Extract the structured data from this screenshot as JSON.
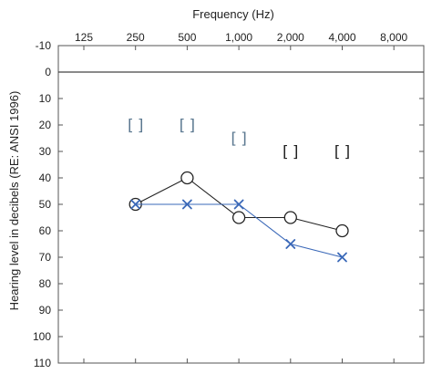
{
  "chart_data": {
    "type": "line",
    "title": "",
    "xlabel": "Frequency (Hz)",
    "ylabel": "Hearing level in decibels (RE: ANSI 1996)",
    "x_categories": [
      "125",
      "250",
      "500",
      "1,000",
      "2,000",
      "4,000",
      "8,000"
    ],
    "y_ticks": [
      "-10",
      "0",
      "10",
      "20",
      "30",
      "40",
      "50",
      "60",
      "70",
      "80",
      "90",
      "100",
      "110"
    ],
    "ylim": [
      -10,
      110
    ],
    "y_inverted": true,
    "x_axis_position": "top",
    "grid": false,
    "reference_line_db": 0,
    "series": [
      {
        "marker": "circle",
        "color": "#222222",
        "x": [
          "250",
          "500",
          "1,000",
          "2,000",
          "4,000"
        ],
        "values": [
          50,
          40,
          55,
          55,
          60
        ]
      },
      {
        "marker": "x",
        "color": "#3a68b8",
        "x": [
          "250",
          "500",
          "1,000",
          "2,000",
          "4,000"
        ],
        "values": [
          50,
          50,
          50,
          65,
          70
        ]
      },
      {
        "marker": "bracket-pair",
        "x": [
          "250",
          "500",
          "1,000",
          "2,000",
          "4,000"
        ],
        "values": [
          20,
          20,
          25,
          30,
          30
        ],
        "colors": [
          "#5b7890",
          "#5b7890",
          "#5b7890",
          "#222222",
          "#222222"
        ]
      }
    ]
  }
}
